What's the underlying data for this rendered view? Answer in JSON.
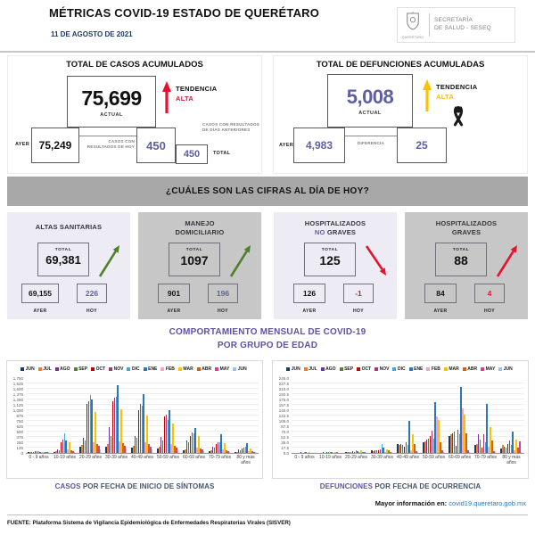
{
  "header": {
    "title": "MÉTRICAS COVID-19 ESTADO DE QUERÉTARO",
    "date": "11 DE AGOSTO DE 2021",
    "logo_org": "QUERÉTARO",
    "logo_line1": "SECRETARÍA",
    "logo_line2": "DE SALUD - SESEQ"
  },
  "cases_panel": {
    "title": "TOTAL DE CASOS ACUMULADOS",
    "actual_value": "75,699",
    "actual_label": "ACTUAL",
    "trend_label": "TENDENCIA",
    "trend_value": "ALTA",
    "trend_color": "#e8112d",
    "ayer_label": "AYER",
    "ayer_value": "75,249",
    "today_label": "CASOS CON RESULTADOS DE HOY",
    "today_value": "450",
    "previous_label": "CASOS CON RESULTADOS DE DÍAS ANTERIORES",
    "total_value": "450",
    "total_label": "TOTAL"
  },
  "deaths_panel": {
    "title": "TOTAL DE DEFUNCIONES ACUMULADAS",
    "actual_value": "5,008",
    "actual_label": "ACTUAL",
    "trend_label": "TENDENCIA",
    "trend_value": "ALTA",
    "trend_color": "#ffc000",
    "ayer_label": "AYER",
    "ayer_value": "4,983",
    "diff_label": "DIFERENCIA",
    "diff_value": "25"
  },
  "banner": "¿CUÁLES SON LAS CIFRAS AL DÍA DE HOY?",
  "cards": [
    {
      "title_line1": "ALTAS SANITARIAS",
      "title_line2_accent": "",
      "title_line2": "",
      "total_label": "TOTAL",
      "total_value": "69,381",
      "ayer_value": "69,155",
      "hoy_value": "226",
      "ayer_label": "AYER",
      "hoy_label": "HOY",
      "trend": "up",
      "arrow_color": "#4e7f2c",
      "hoy_color": "#5e5fa3"
    },
    {
      "title_line1": "MANEJO",
      "title_line2_accent": "",
      "title_line2": "DOMICILIARIO",
      "total_label": "TOTAL",
      "total_value": "1097",
      "ayer_value": "901",
      "hoy_value": "196",
      "ayer_label": "AYER",
      "hoy_label": "HOY",
      "trend": "up",
      "arrow_color": "#4e7f2c",
      "hoy_color": "#5e5fa3"
    },
    {
      "title_line1": "HOSPITALIZADOS",
      "title_line2_accent": "NO",
      "title_line2": "GRAVES",
      "total_label": "TOTAL",
      "total_value": "125",
      "ayer_value": "126",
      "hoy_value": "-1",
      "ayer_label": "AYER",
      "hoy_label": "HOY",
      "trend": "down",
      "arrow_color": "#e8112d",
      "hoy_color": "#e8112d"
    },
    {
      "title_line1": "HOSPITALIZADOS",
      "title_line2_accent": "",
      "title_line2": "GRAVES",
      "total_label": "TOTAL",
      "total_value": "88",
      "ayer_value": "84",
      "hoy_value": "4",
      "ayer_label": "AYER",
      "hoy_label": "HOY",
      "trend": "up",
      "arrow_color": "#e8112d",
      "hoy_color": "#e8112d"
    }
  ],
  "section_title": {
    "line1": "COMPORTAMIENTO MENSUAL DE COVID-19",
    "line2": "POR GRUPO DE EDAD"
  },
  "captions": [
    {
      "accent": "CASOS",
      "rest": " POR FECHA DE INICIO DE SÍNTOMAS"
    },
    {
      "accent": "DEFUNCIONES",
      "rest": " POR FECHA DE OCURRENCIA"
    }
  ],
  "footer": {
    "info_label": "Mayor información en:",
    "info_link": "covid19.queretaro.gob.mx",
    "source": "FUENTE: Plataforma Sistema  de Vigilancia Epidemiológica de Enfermedades Respiratorias Virales (SISVER)"
  },
  "chart_data": [
    {
      "type": "bar",
      "title": "CASOS POR FECHA DE INICIO DE SÍNTOMAS",
      "xlabel": "",
      "ylabel": "",
      "grid": true,
      "legend_position": "top",
      "ylim": [
        0,
        1750
      ],
      "tick_labels": [
        "0",
        "125",
        "250",
        "375",
        "500",
        "625",
        "750",
        "875",
        "1,000",
        "1,125",
        "1,250",
        "1,375",
        "1,500",
        "1,625",
        "1,750"
      ],
      "categories": [
        "0 - 9 años",
        "10-19 años",
        "20-29 años",
        "30-39 años",
        "40-49 años",
        "50-59 años",
        "60-69 años",
        "70-79 años",
        "80 y más años"
      ],
      "series": [
        {
          "name": "JUN",
          "color": "#1f3864",
          "values": [
            5,
            15,
            140,
            150,
            130,
            110,
            70,
            40,
            20
          ]
        },
        {
          "name": "JUL",
          "color": "#ed7d31",
          "values": [
            10,
            40,
            180,
            200,
            170,
            140,
            90,
            60,
            30
          ]
        },
        {
          "name": "AGO",
          "color": "#7030a0",
          "values": [
            20,
            80,
            350,
            600,
            400,
            380,
            300,
            150,
            80
          ]
        },
        {
          "name": "SEP",
          "color": "#548235",
          "values": [
            15,
            70,
            300,
            400,
            350,
            300,
            250,
            130,
            70
          ]
        },
        {
          "name": "OCT",
          "color": "#c00000",
          "values": [
            45,
            260,
            1150,
            1200,
            1000,
            850,
            400,
            210,
            110
          ]
        },
        {
          "name": "NOV",
          "color": "#a23b72",
          "values": [
            40,
            310,
            1200,
            1300,
            1150,
            900,
            480,
            250,
            130
          ]
        },
        {
          "name": "DIC",
          "color": "#41a5d9",
          "values": [
            35,
            450,
            1360,
            1320,
            1100,
            780,
            450,
            240,
            150
          ]
        },
        {
          "name": "ENE",
          "color": "#2e75b6",
          "values": [
            30,
            290,
            1250,
            1580,
            1380,
            1010,
            580,
            430,
            220
          ]
        },
        {
          "name": "FEB",
          "color": "#f2a6c4",
          "values": [
            15,
            80,
            260,
            280,
            250,
            200,
            130,
            90,
            50
          ]
        },
        {
          "name": "MAR",
          "color": "#ffc000",
          "values": [
            30,
            260,
            950,
            1020,
            880,
            680,
            400,
            220,
            110
          ]
        },
        {
          "name": "ABR",
          "color": "#d3600d",
          "values": [
            15,
            70,
            210,
            230,
            200,
            170,
            110,
            70,
            40
          ]
        },
        {
          "name": "MAY",
          "color": "#d63f8d",
          "values": [
            10,
            45,
            160,
            170,
            150,
            120,
            80,
            50,
            30
          ]
        },
        {
          "name": "JUN",
          "color": "#9dc3e6",
          "values": [
            8,
            25,
            90,
            95,
            80,
            60,
            40,
            25,
            15
          ]
        }
      ]
    },
    {
      "type": "bar",
      "title": "DEFUNCIONES POR FECHA DE OCURRENCIA",
      "xlabel": "",
      "ylabel": "",
      "grid": true,
      "legend_position": "top",
      "ylim": [
        0,
        245
      ],
      "tick_labels": [
        "0.0",
        "17.5",
        "35.0",
        "52.5",
        "70.0",
        "87.5",
        "105.0",
        "122.5",
        "140.0",
        "157.5",
        "175.0",
        "192.5",
        "210.0",
        "227.5",
        "245.0"
      ],
      "categories": [
        "0 - 9 años",
        "10-19 años",
        "20-29 años",
        "30-39 años",
        "40-49 años",
        "50-59 años",
        "60-69 años",
        "70-79 años",
        "80 y más años"
      ],
      "series": [
        {
          "name": "JUN",
          "color": "#1f3864",
          "values": [
            0,
            0,
            1,
            8,
            30,
            35,
            55,
            25,
            15
          ]
        },
        {
          "name": "JUL",
          "color": "#ed7d31",
          "values": [
            0,
            0,
            1,
            7,
            25,
            38,
            60,
            28,
            25
          ]
        },
        {
          "name": "AGO",
          "color": "#7030a0",
          "values": [
            0,
            1,
            2,
            9,
            30,
            45,
            65,
            60,
            20
          ]
        },
        {
          "name": "SEP",
          "color": "#548235",
          "values": [
            0,
            0,
            2,
            8,
            25,
            48,
            70,
            45,
            18
          ]
        },
        {
          "name": "OCT",
          "color": "#c00000",
          "values": [
            1,
            3,
            6,
            10,
            20,
            55,
            22,
            18,
            30
          ]
        },
        {
          "name": "NOV",
          "color": "#a23b72",
          "values": [
            0,
            1,
            4,
            12,
            35,
            72,
            75,
            60,
            40
          ]
        },
        {
          "name": "DIC",
          "color": "#41a5d9",
          "values": [
            1,
            2,
            8,
            28,
            25,
            48,
            60,
            35,
            25
          ]
        },
        {
          "name": "ENE",
          "color": "#2e75b6",
          "values": [
            1,
            2,
            7,
            18,
            105,
            166,
            215,
            160,
            70
          ]
        },
        {
          "name": "FEB",
          "color": "#f2a6c4",
          "values": [
            0,
            0,
            1,
            4,
            8,
            120,
            145,
            20,
            10
          ]
        },
        {
          "name": "MAR",
          "color": "#ffc000",
          "values": [
            1,
            3,
            9,
            12,
            62,
            108,
            125,
            85,
            45
          ]
        },
        {
          "name": "ABR",
          "color": "#d3600d",
          "values": [
            0,
            1,
            2,
            9,
            30,
            35,
            65,
            42,
            18
          ]
        },
        {
          "name": "MAY",
          "color": "#d63f8d",
          "values": [
            0,
            0,
            1,
            2,
            5,
            8,
            8,
            5,
            38
          ]
        },
        {
          "name": "JUN",
          "color": "#9dc3e6",
          "values": [
            0,
            0,
            0,
            1,
            2,
            2,
            2,
            2,
            2
          ]
        }
      ]
    }
  ]
}
